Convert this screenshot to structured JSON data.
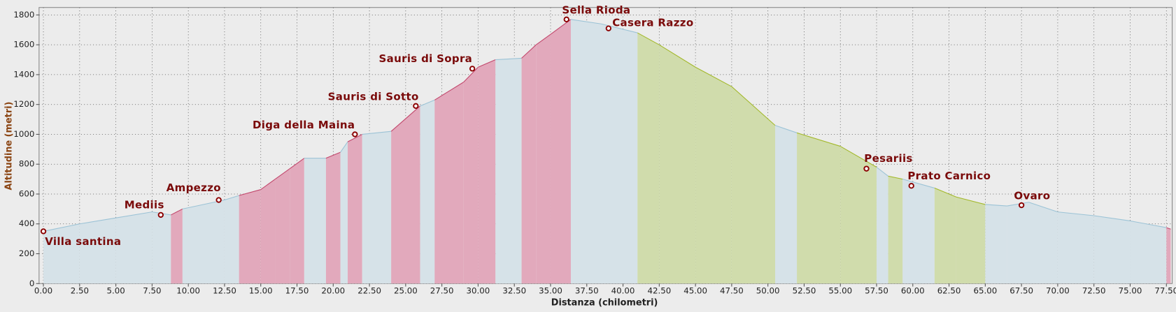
{
  "chart_data": {
    "type": "elevation-profile",
    "x_label": "Distanza (chilometri)",
    "y_label": "Altitudine (metri)",
    "xlim": [
      -0.3,
      77.9
    ],
    "ylim": [
      0,
      1850
    ],
    "grid": true,
    "xticks": [
      {
        "value": 0,
        "label": "0.00"
      },
      {
        "value": 2.5,
        "label": "2.50"
      },
      {
        "value": 5,
        "label": "5.00"
      },
      {
        "value": 7.5,
        "label": "7.50"
      },
      {
        "value": 10,
        "label": "10.00"
      },
      {
        "value": 12.5,
        "label": "12.50"
      },
      {
        "value": 15,
        "label": "15.00"
      },
      {
        "value": 17.5,
        "label": "17.50"
      },
      {
        "value": 20,
        "label": "20.00"
      },
      {
        "value": 22.5,
        "label": "22.50"
      },
      {
        "value": 25,
        "label": "25.00"
      },
      {
        "value": 27.5,
        "label": "27.50"
      },
      {
        "value": 30,
        "label": "30.00"
      },
      {
        "value": 32.5,
        "label": "32.50"
      },
      {
        "value": 35,
        "label": "35.00"
      },
      {
        "value": 37.5,
        "label": "37.50"
      },
      {
        "value": 40,
        "label": "40.00"
      },
      {
        "value": 42.5,
        "label": "42.50"
      },
      {
        "value": 45,
        "label": "45.00"
      },
      {
        "value": 47.5,
        "label": "47.50"
      },
      {
        "value": 50,
        "label": "50.00"
      },
      {
        "value": 52.5,
        "label": "52.50"
      },
      {
        "value": 55,
        "label": "55.00"
      },
      {
        "value": 57.5,
        "label": "57.50"
      },
      {
        "value": 60,
        "label": "60.00"
      },
      {
        "value": 62.5,
        "label": "62.50"
      },
      {
        "value": 65,
        "label": "65.00"
      },
      {
        "value": 67.5,
        "label": "67.50"
      },
      {
        "value": 70,
        "label": "70.00"
      },
      {
        "value": 72.5,
        "label": "72.50"
      },
      {
        "value": 75,
        "label": "75.00"
      },
      {
        "value": 77.5,
        "label": "77.50"
      }
    ],
    "yticks": [
      0,
      200,
      400,
      600,
      800,
      1000,
      1200,
      1400,
      1600,
      1800
    ],
    "edge_colors": {
      "#d6e2e8": "#9cc3d6",
      "#e2a9bc": "#c2476c",
      "#d0dcac": "#a3b82a"
    },
    "x": [
      0,
      2.5,
      5,
      7.5,
      8.8,
      9.6,
      12.5,
      13.5,
      15,
      16,
      17,
      18,
      19.5,
      20.5,
      21,
      22,
      24,
      26,
      27,
      29,
      30,
      31.2,
      33,
      34,
      35,
      36.4,
      38.5,
      41,
      42.5,
      45,
      47.5,
      50.5,
      52,
      55,
      57.5,
      58.3,
      59.3,
      61.5,
      63,
      65,
      66.5,
      68,
      70,
      72.5,
      75,
      77.5,
      77.8
    ],
    "series": [
      {
        "values": [
          350,
          400,
          440,
          480,
          460,
          500,
          560,
          590,
          630,
          700,
          770,
          840,
          840,
          880,
          950,
          1000,
          1020,
          1190,
          1230,
          1350,
          1450,
          1500,
          1510,
          1600,
          1670,
          1770,
          1740,
          1680,
          1600,
          1450,
          1320,
          1060,
          1010,
          920,
          780,
          720,
          700,
          640,
          580,
          530,
          520,
          545,
          480,
          455,
          420,
          375,
          365
        ],
        "band_colors": [
          "#d6e2e8",
          "#d6e2e8",
          "#d6e2e8",
          "#d6e2e8",
          "#e2a9bc",
          "#d6e2e8",
          "#d6e2e8",
          "#e2a9bc",
          "#e2a9bc",
          "#e2a9bc",
          "#e2a9bc",
          "#d6e2e8",
          "#e2a9bc",
          "#d6e2e8",
          "#e2a9bc",
          "#d6e2e8",
          "#e2a9bc",
          "#d6e2e8",
          "#e2a9bc",
          "#e2a9bc",
          "#e2a9bc",
          "#d6e2e8",
          "#e2a9bc",
          "#e2a9bc",
          "#e2a9bc",
          "#d6e2e8",
          "#d6e2e8",
          "#d0dcac",
          "#d0dcac",
          "#d0dcac",
          "#d0dcac",
          "#d6e2e8",
          "#d0dcac",
          "#d0dcac",
          "#d6e2e8",
          "#d0dcac",
          "#d6e2e8",
          "#d0dcac",
          "#d0dcac",
          "#d6e2e8",
          "#d6e2e8",
          "#d6e2e8",
          "#d6e2e8",
          "#d6e2e8",
          "#d6e2e8",
          "#e2a9bc",
          null
        ]
      }
    ],
    "marker_color": "#8b0000",
    "annotations": [
      {
        "text": "Villa santina",
        "x": 0,
        "y": 350
      },
      {
        "text": "Mediis",
        "x": 8.1,
        "y": 460
      },
      {
        "text": "Ampezzo",
        "x": 12.1,
        "y": 560
      },
      {
        "text": "Diga della Maina",
        "x": 21.5,
        "y": 1000
      },
      {
        "text": "Sauris di Sotto",
        "x": 25.7,
        "y": 1190
      },
      {
        "text": "Sauris di Sopra",
        "x": 29.6,
        "y": 1440
      },
      {
        "text": "Sella Rioda",
        "x": 36.1,
        "y": 1770
      },
      {
        "text": "Casera Razzo",
        "x": 39,
        "y": 1710
      },
      {
        "text": "Pesariis",
        "x": 56.8,
        "y": 770
      },
      {
        "text": "Prato Carnico",
        "x": 59.9,
        "y": 655
      },
      {
        "text": "Ovaro",
        "x": 67.5,
        "y": 525
      }
    ]
  }
}
